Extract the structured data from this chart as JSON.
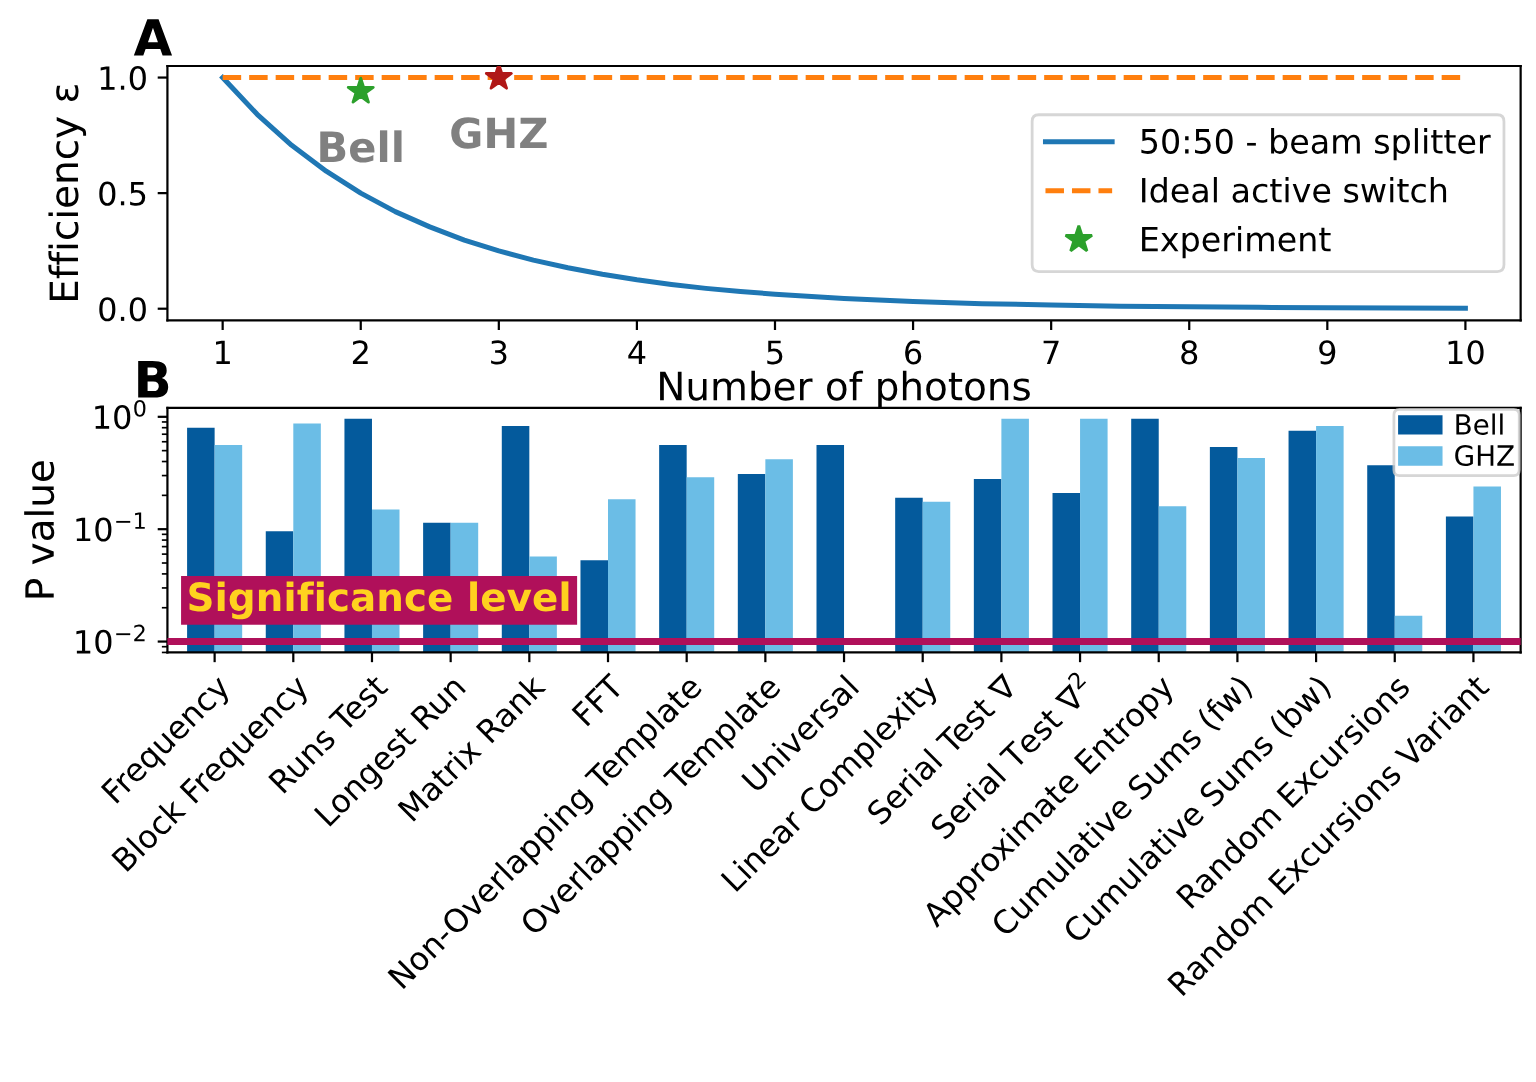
{
  "chart_data": [
    {
      "type": "line",
      "title": "A",
      "xlabel": "Number of photons",
      "ylabel": "Efficiency ε",
      "xlim": [
        0.6,
        10.4
      ],
      "ylim": [
        -0.05,
        1.05
      ],
      "xticks": [
        1,
        2,
        3,
        4,
        5,
        6,
        7,
        8,
        9,
        10
      ],
      "yticks": [
        {
          "value": 0,
          "label": "0.0"
        },
        0.5,
        {
          "value": 1,
          "label": "1.0"
        }
      ],
      "legend": "right",
      "grid": false,
      "series": [
        {
          "name": "50:50 - beam splitter",
          "type": "line",
          "color": "#1f77b4",
          "line_style": "solid",
          "marker": "none",
          "x": [
            1,
            1.25,
            1.5,
            1.75,
            2,
            2.25,
            2.5,
            2.75,
            3,
            3.25,
            3.5,
            3.75,
            4,
            4.25,
            4.5,
            4.75,
            5,
            5.5,
            6,
            6.5,
            7,
            7.5,
            8,
            8.5,
            9,
            9.5,
            10
          ],
          "values": [
            1.0,
            0.841,
            0.707,
            0.595,
            0.5,
            0.42,
            0.354,
            0.297,
            0.25,
            0.21,
            0.177,
            0.149,
            0.125,
            0.105,
            0.088,
            0.074,
            0.063,
            0.044,
            0.031,
            0.022,
            0.016,
            0.011,
            0.008,
            0.006,
            0.004,
            0.003,
            0.002
          ]
        },
        {
          "name": "Ideal active switch",
          "type": "line",
          "color": "#ff7f0e",
          "line_style": "dashed",
          "marker": "none",
          "x": [
            1,
            10
          ],
          "values": [
            1.0,
            1.0
          ]
        },
        {
          "name": "Experiment",
          "type": "scatter",
          "color": "#2ca02c",
          "colors": [
            "#2ca02c",
            "#b01818"
          ],
          "marker": "star",
          "x": [
            2,
            3
          ],
          "values": [
            0.94,
            1.0
          ]
        }
      ],
      "annotations": [
        {
          "text": "Bell",
          "x": 2,
          "y": 0.94
        },
        {
          "text": "GHZ",
          "x": 3,
          "y": 1.0
        }
      ]
    },
    {
      "type": "bar",
      "title": "B",
      "ylabel": "P value",
      "log": "y",
      "ylim": [
        0.008,
        1.2
      ],
      "yticks": [
        {
          "value": 1,
          "label": "10$^{0}$"
        },
        {
          "value": 0.1,
          "label": "10$^{−1}$"
        },
        {
          "value": 0.01,
          "label": "10$^{−2}$"
        }
      ],
      "legend": "top right",
      "grid": false,
      "categories": [
        "Frequency",
        "Block Frequency",
        "Runs Test",
        "Longest Run",
        "Matrix Rank",
        "FFT",
        "Non-Overlapping Template",
        "Overlapping Template",
        "Universal",
        "Linear Complexity",
        "Serial Test ∇",
        "Serial Test ∇$^{2}$",
        "Approximate Entropy",
        "Cumulative Sums (fw)",
        "Cumulative Sums (bw)",
        "Random Excursions",
        "Random Excursions Variant"
      ],
      "series": [
        {
          "name": "Bell",
          "color": "#045a9c",
          "values": [
            0.8,
            0.096,
            0.96,
            0.114,
            0.83,
            0.053,
            0.56,
            0.31,
            0.56,
            0.19,
            0.28,
            0.21,
            0.96,
            0.54,
            0.75,
            0.37,
            0.13
          ]
        },
        {
          "name": "GHZ",
          "color": "#6bbde6",
          "values": [
            0.56,
            0.87,
            0.15,
            0.114,
            0.057,
            0.185,
            0.29,
            0.42,
            null,
            0.175,
            0.96,
            0.96,
            0.16,
            0.43,
            0.83,
            0.017,
            0.24
          ]
        }
      ],
      "ref_lines": [
        {
          "axis": "y",
          "value": 0.01,
          "label": "Significance level",
          "color": "#b0105a"
        }
      ]
    }
  ]
}
